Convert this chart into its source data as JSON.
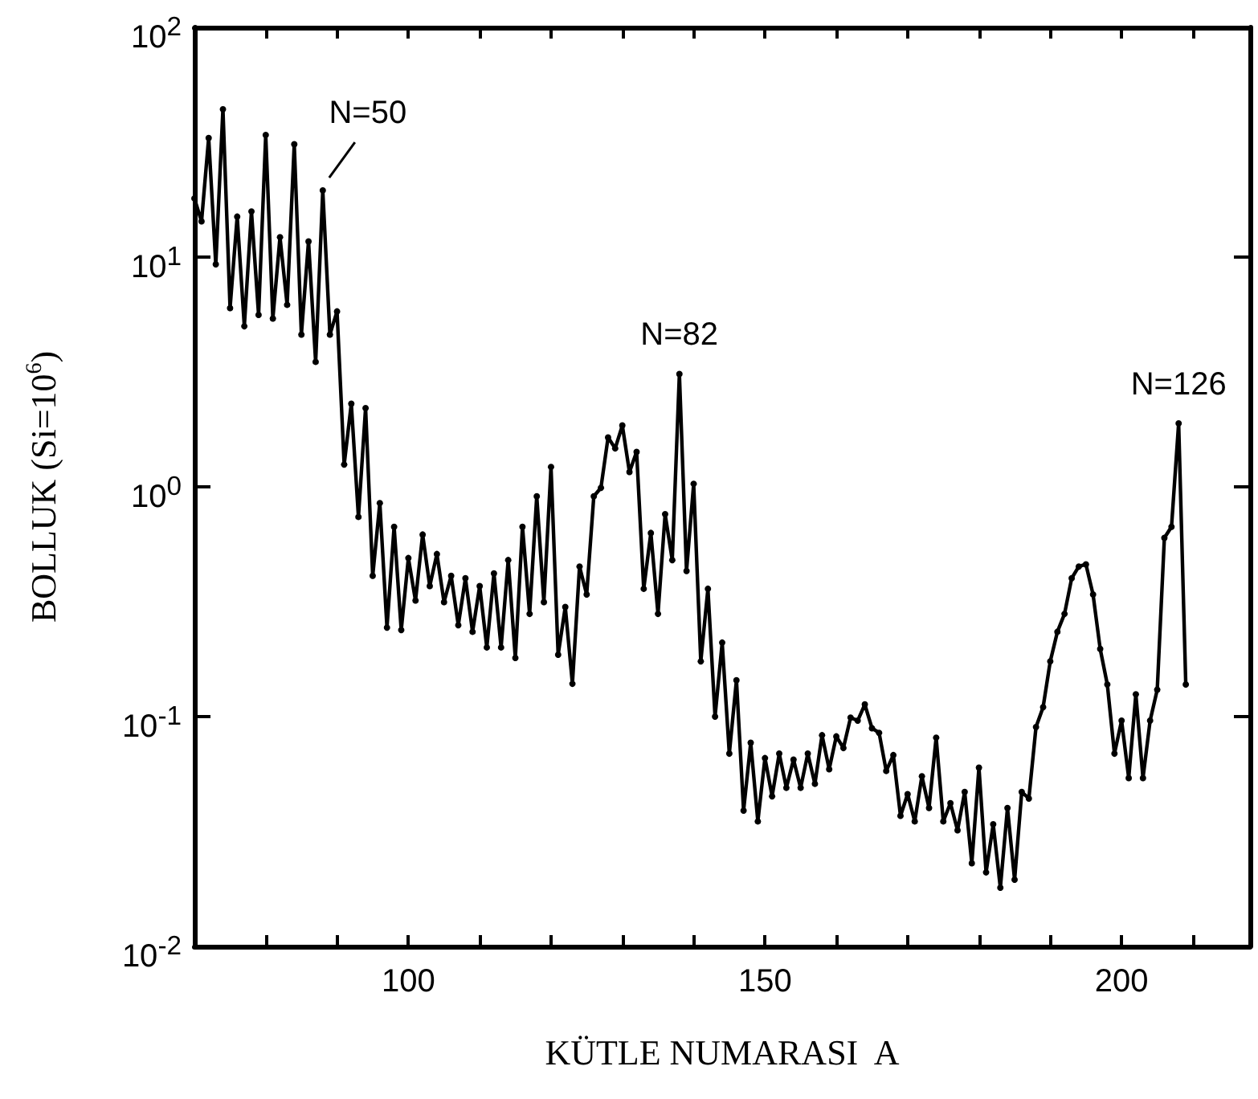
{
  "chart_data": {
    "type": "line",
    "xlabel": "KÜTLE NUMARASI  A",
    "ylabel": "BOLLUK (Si=10$^{6}$)",
    "x": [
      70,
      71,
      72,
      73,
      74,
      75,
      76,
      77,
      78,
      79,
      80,
      81,
      82,
      83,
      84,
      85,
      86,
      87,
      88,
      89,
      90,
      91,
      92,
      93,
      94,
      95,
      96,
      97,
      98,
      99,
      100,
      101,
      102,
      103,
      104,
      105,
      106,
      107,
      108,
      109,
      110,
      111,
      112,
      113,
      114,
      115,
      116,
      117,
      118,
      119,
      120,
      121,
      122,
      123,
      124,
      125,
      126,
      127,
      128,
      129,
      130,
      131,
      132,
      133,
      134,
      135,
      136,
      137,
      138,
      139,
      140,
      141,
      142,
      143,
      144,
      145,
      146,
      147,
      148,
      149,
      150,
      151,
      152,
      153,
      154,
      155,
      156,
      157,
      158,
      159,
      160,
      161,
      162,
      163,
      164,
      165,
      166,
      167,
      168,
      169,
      170,
      171,
      172,
      173,
      174,
      175,
      176,
      177,
      178,
      179,
      180,
      181,
      182,
      183,
      184,
      185,
      186,
      187,
      188,
      189,
      190,
      191,
      192,
      193,
      194,
      195,
      196,
      197,
      198,
      199,
      200,
      201,
      202,
      203,
      204,
      205,
      206,
      207,
      208,
      209
    ],
    "series": [
      {
        "color": "#000000",
        "values": [
          18,
          14.3,
          33,
          9.3,
          44,
          6.0,
          15,
          5.0,
          15.8,
          5.6,
          34,
          5.4,
          12.2,
          6.2,
          31,
          4.6,
          11.7,
          3.5,
          19.5,
          4.6,
          5.8,
          1.25,
          2.3,
          0.74,
          2.2,
          0.41,
          0.85,
          0.244,
          0.67,
          0.238,
          0.49,
          0.32,
          0.62,
          0.37,
          0.51,
          0.315,
          0.41,
          0.25,
          0.4,
          0.234,
          0.37,
          0.2,
          0.42,
          0.2,
          0.48,
          0.18,
          0.67,
          0.28,
          0.91,
          0.315,
          1.22,
          0.186,
          0.3,
          0.139,
          0.45,
          0.34,
          0.91,
          0.99,
          1.64,
          1.47,
          1.85,
          1.16,
          1.42,
          0.36,
          0.63,
          0.28,
          0.76,
          0.48,
          3.1,
          0.43,
          1.03,
          0.174,
          0.36,
          0.1,
          0.21,
          0.069,
          0.144,
          0.039,
          0.077,
          0.035,
          0.066,
          0.045,
          0.069,
          0.049,
          0.065,
          0.049,
          0.069,
          0.051,
          0.083,
          0.059,
          0.082,
          0.073,
          0.099,
          0.096,
          0.113,
          0.089,
          0.085,
          0.058,
          0.068,
          0.037,
          0.046,
          0.035,
          0.055,
          0.04,
          0.081,
          0.035,
          0.042,
          0.032,
          0.047,
          0.023,
          0.06,
          0.021,
          0.034,
          0.018,
          0.04,
          0.0195,
          0.047,
          0.044,
          0.09,
          0.11,
          0.174,
          0.234,
          0.28,
          0.4,
          0.45,
          0.46,
          0.34,
          0.197,
          0.138,
          0.069,
          0.096,
          0.054,
          0.125,
          0.054,
          0.096,
          0.131,
          0.6,
          0.67,
          1.89,
          0.138
        ]
      }
    ],
    "xlim": [
      70,
      218
    ],
    "xticks": [
      {
        "value": 80,
        "label": null
      },
      {
        "value": 90,
        "label": null
      },
      100,
      {
        "value": 110,
        "label": null
      },
      {
        "value": 120,
        "label": null
      },
      {
        "value": 130,
        "label": null
      },
      {
        "value": 140,
        "label": null
      },
      150,
      {
        "value": 160,
        "label": null
      },
      {
        "value": 170,
        "label": null
      },
      {
        "value": 180,
        "label": null
      },
      {
        "value": 190,
        "label": null
      },
      200,
      {
        "value": 210,
        "label": null
      }
    ],
    "ylim": [
      0.01,
      100
    ],
    "log": true,
    "yticks": [
      {
        "value": 0.01,
        "label": "10$^{-2}$"
      },
      {
        "value": 0.1,
        "label": "10$^{-1}$"
      },
      {
        "value": 1,
        "label": "10$^{0}$"
      },
      {
        "value": 10,
        "label": "10$^{1}$"
      },
      {
        "value": 100,
        "label": "10$^{2}$"
      }
    ],
    "grid": false,
    "marker": "circle",
    "line_style": "solid",
    "annotations": [
      {
        "text": "N=50",
        "x": 88,
        "y": 19.5
      },
      {
        "text": "N=82",
        "x": 138,
        "y": 3.1
      },
      {
        "text": "N=126",
        "x": 208,
        "y": 1.89
      }
    ]
  }
}
